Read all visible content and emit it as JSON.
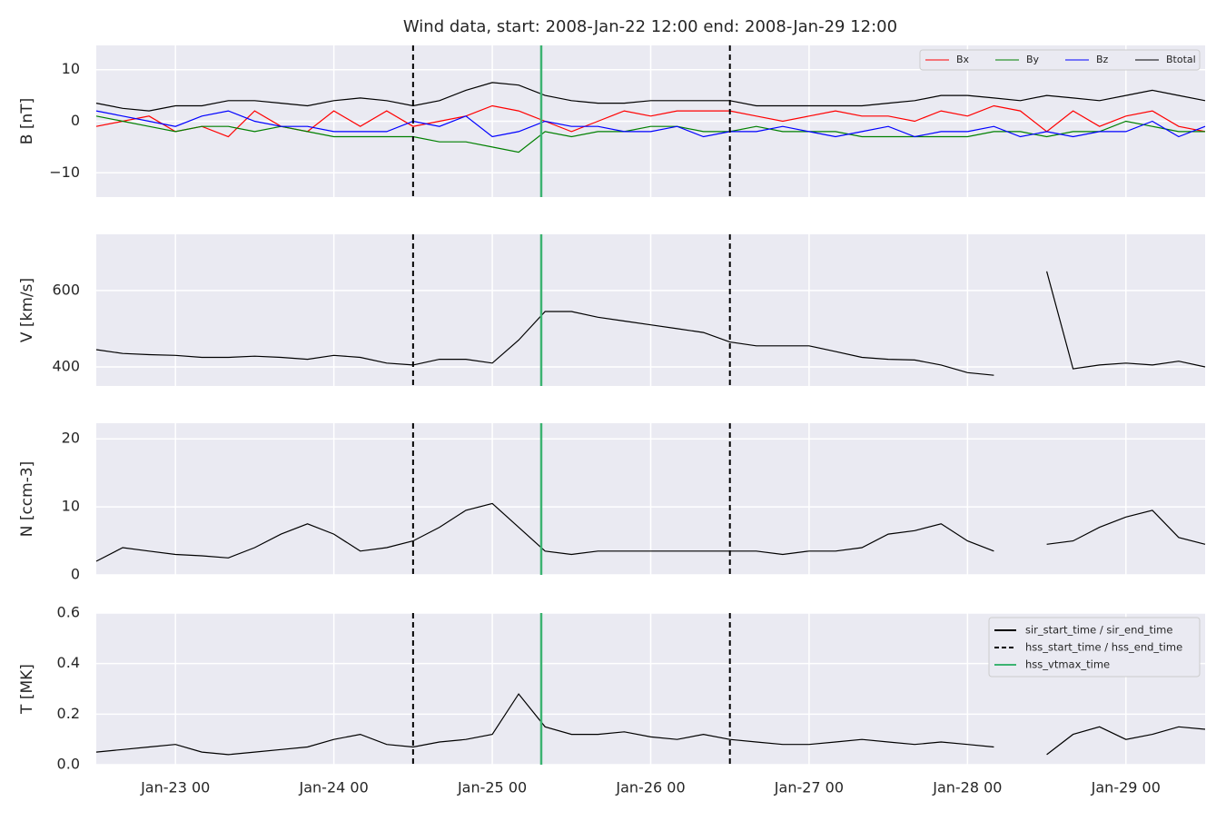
{
  "title": "Wind data, start: 2008-Jan-22 12:00  end: 2008-Jan-29 12:00",
  "x": [
    "2008-01-22T12:00",
    "2008-01-22T16:00",
    "2008-01-22T20:00",
    "2008-01-23T00:00",
    "2008-01-23T04:00",
    "2008-01-23T08:00",
    "2008-01-23T12:00",
    "2008-01-23T16:00",
    "2008-01-23T20:00",
    "2008-01-24T00:00",
    "2008-01-24T04:00",
    "2008-01-24T08:00",
    "2008-01-24T12:00",
    "2008-01-24T16:00",
    "2008-01-24T20:00",
    "2008-01-25T00:00",
    "2008-01-25T04:00",
    "2008-01-25T08:00",
    "2008-01-25T12:00",
    "2008-01-25T16:00",
    "2008-01-25T20:00",
    "2008-01-26T00:00",
    "2008-01-26T04:00",
    "2008-01-26T08:00",
    "2008-01-26T12:00",
    "2008-01-26T16:00",
    "2008-01-26T20:00",
    "2008-01-27T00:00",
    "2008-01-27T04:00",
    "2008-01-27T08:00",
    "2008-01-27T12:00",
    "2008-01-27T16:00",
    "2008-01-27T20:00",
    "2008-01-28T00:00",
    "2008-01-28T04:00",
    "2008-01-28T08:00",
    "2008-01-28T12:00",
    "2008-01-28T16:00",
    "2008-01-28T20:00",
    "2008-01-29T00:00",
    "2008-01-29T04:00",
    "2008-01-29T08:00",
    "2008-01-29T12:00"
  ],
  "xlim": [
    "2008-01-22T12:00",
    "2008-01-29T12:00"
  ],
  "xticks": [
    {
      "value": "2008-01-23T00:00",
      "label": "Jan-23 00"
    },
    {
      "value": "2008-01-24T00:00",
      "label": "Jan-24 00"
    },
    {
      "value": "2008-01-25T00:00",
      "label": "Jan-25 00"
    },
    {
      "value": "2008-01-26T00:00",
      "label": "Jan-26 00"
    },
    {
      "value": "2008-01-27T00:00",
      "label": "Jan-27 00"
    },
    {
      "value": "2008-01-28T00:00",
      "label": "Jan-28 00"
    },
    {
      "value": "2008-01-29T00:00",
      "label": "Jan-29 00"
    }
  ],
  "events": [
    {
      "name": "sir_start_time / sir_end_time",
      "color": "#000000",
      "dash": false,
      "times": []
    },
    {
      "name": "hss_start_time / hss_end_time",
      "color": "#000000",
      "dash": true,
      "times": [
        "2008-01-24T12:00",
        "2008-01-26T12:00"
      ]
    },
    {
      "name": "hss_vtmax_time",
      "color": "#3cb371",
      "dash": false,
      "times": [
        "2008-01-25T07:25"
      ]
    }
  ],
  "chart_data": [
    {
      "type": "line",
      "ylabel": "B [nT]",
      "ylim": [
        -14.7,
        14.7
      ],
      "yticks": [
        {
          "value": -10,
          "label": "−10"
        },
        0,
        10
      ],
      "grid": true,
      "legend": "upper right",
      "series": [
        {
          "name": "Bx",
          "color": "#ff0000",
          "values": [
            -1,
            0,
            1,
            -2,
            -1,
            -3,
            2,
            -1,
            -2,
            2,
            -1,
            2,
            -1,
            0,
            1,
            3,
            2,
            0,
            -2,
            0,
            2,
            1,
            2,
            2,
            2,
            1,
            0,
            1,
            2,
            1,
            1,
            0,
            2,
            1,
            3,
            2,
            -2,
            2,
            -1,
            1,
            2,
            -1,
            -2
          ]
        },
        {
          "name": "By",
          "color": "#008000",
          "values": [
            1,
            0,
            -1,
            -2,
            -1,
            -1,
            -2,
            -1,
            -2,
            -3,
            -3,
            -3,
            -3,
            -4,
            -4,
            -5,
            -6,
            -2,
            -3,
            -2,
            -2,
            -1,
            -1,
            -2,
            -2,
            -1,
            -2,
            -2,
            -2,
            -3,
            -3,
            -3,
            -3,
            -3,
            -2,
            -2,
            -3,
            -2,
            -2,
            0,
            -1,
            -2,
            -2
          ]
        },
        {
          "name": "Bz",
          "color": "#0000ff",
          "values": [
            2,
            1,
            0,
            -1,
            1,
            2,
            0,
            -1,
            -1,
            -2,
            -2,
            -2,
            0,
            -1,
            1,
            -3,
            -2,
            0,
            -1,
            -1,
            -2,
            -2,
            -1,
            -3,
            -2,
            -2,
            -1,
            -2,
            -3,
            -2,
            -1,
            -3,
            -2,
            -2,
            -1,
            -3,
            -2,
            -3,
            -2,
            -2,
            0,
            -3,
            -1
          ]
        },
        {
          "name": "Btotal",
          "color": "#000000",
          "values": [
            3.5,
            2.5,
            2,
            3,
            3,
            4,
            4,
            3.5,
            3,
            4,
            4.5,
            4,
            3,
            4,
            6,
            7.5,
            7,
            5,
            4,
            3.5,
            3.5,
            4,
            4,
            4,
            4,
            3,
            3,
            3,
            3,
            3,
            3.5,
            4,
            5,
            5,
            4.5,
            4,
            5,
            4.5,
            4,
            5,
            6,
            5,
            4
          ]
        }
      ]
    },
    {
      "type": "line",
      "ylabel": "V [km/s]",
      "ylim": [
        350,
        747
      ],
      "yticks": [
        400,
        600
      ],
      "grid": true,
      "series": [
        {
          "color": "#000000",
          "values": [
            445,
            435,
            432,
            430,
            425,
            425,
            428,
            425,
            420,
            430,
            425,
            410,
            405,
            420,
            420,
            410,
            470,
            545,
            545,
            530,
            520,
            510,
            500,
            490,
            465,
            455,
            455,
            455,
            440,
            425,
            420,
            418,
            405,
            385,
            378,
            null,
            650,
            395,
            405,
            410,
            405,
            415,
            400
          ]
        }
      ]
    },
    {
      "type": "line",
      "ylabel": "N [ccm-3]",
      "ylim": [
        0,
        22.3
      ],
      "yticks": [
        0,
        10,
        20
      ],
      "grid": true,
      "series": [
        {
          "color": "#000000",
          "values": [
            2,
            4,
            3.5,
            3,
            2.8,
            2.5,
            4,
            6,
            7.5,
            6,
            3.5,
            4,
            5,
            7,
            9.5,
            10.5,
            7,
            3.5,
            3,
            3.5,
            3.5,
            3.5,
            3.5,
            3.5,
            3.5,
            3.5,
            3,
            3.5,
            3.5,
            4,
            6,
            6.5,
            7.5,
            5,
            3.5,
            null,
            4.5,
            5,
            7,
            8.5,
            9.5,
            5.5,
            4.5
          ]
        }
      ]
    },
    {
      "type": "line",
      "ylabel": "T [MK]",
      "ylim": [
        0,
        0.6
      ],
      "yticks": [
        {
          "value": 0,
          "label": "0.0"
        },
        0.2,
        0.4,
        0.6
      ],
      "grid": true,
      "legend": "upper right",
      "legend_source": "events",
      "series": [
        {
          "color": "#000000",
          "values": [
            0.05,
            0.06,
            0.07,
            0.08,
            0.05,
            0.04,
            0.05,
            0.06,
            0.07,
            0.1,
            0.12,
            0.08,
            0.07,
            0.09,
            0.1,
            0.12,
            0.28,
            0.15,
            0.12,
            0.12,
            0.13,
            0.11,
            0.1,
            0.12,
            0.1,
            0.09,
            0.08,
            0.08,
            0.09,
            0.1,
            0.09,
            0.08,
            0.09,
            0.08,
            0.07,
            null,
            0.04,
            0.12,
            0.15,
            0.1,
            0.12,
            0.15,
            0.14
          ]
        }
      ]
    }
  ]
}
